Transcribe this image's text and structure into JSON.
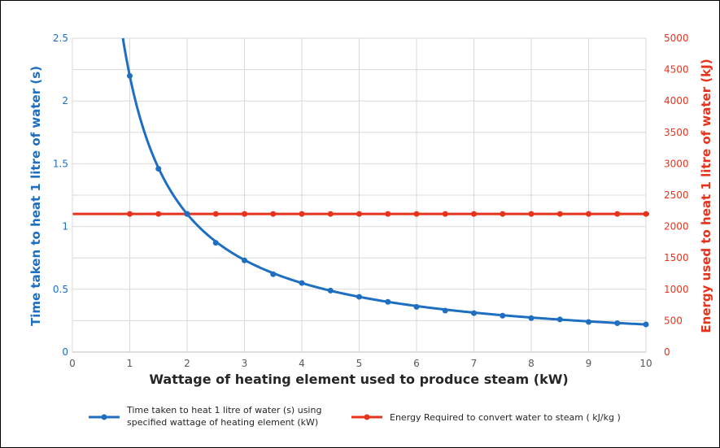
{
  "colors": {
    "series_blue": "#1f6fc1",
    "series_red": "#e8331c",
    "grid": "#d9d9d9",
    "axis_text": "#595959"
  },
  "chart_data": {
    "type": "line",
    "xlabel": "Wattage of heating element used to produce steam (kW)",
    "ylabel_left": "Time taken to heat 1 litre of water (s)",
    "ylabel_right": "Energy used to heat 1 litre of water (kJ)",
    "xlim": [
      0,
      10
    ],
    "ylim_left": [
      0,
      2.5
    ],
    "ylim_right": [
      0,
      5000
    ],
    "x_ticks": [
      "0",
      "1",
      "2",
      "3",
      "4",
      "5",
      "6",
      "7",
      "8",
      "9",
      "10"
    ],
    "yleft_ticks": [
      "0",
      "0.5",
      "1",
      "1.5",
      "2",
      "2.5"
    ],
    "yright_ticks": [
      "0",
      "500",
      "1000",
      "1500",
      "2000",
      "2500",
      "3000",
      "3500",
      "4000",
      "4500",
      "5000"
    ],
    "grid": true,
    "legend_position": "bottom",
    "series": [
      {
        "name_lines": [
          "Time taken to heat 1 litre of water (s) using",
          "specified wattage of heating element (kW)"
        ],
        "axis": "left",
        "color": "#1f6fc1",
        "curve": "reciprocal",
        "x": [
          1,
          1.5,
          2,
          2.5,
          3,
          3.5,
          4,
          4.5,
          5,
          5.5,
          6,
          6.5,
          7,
          7.5,
          8,
          8.5,
          9,
          9.5,
          10
        ],
        "y": [
          2.2,
          1.46,
          1.1,
          0.87,
          0.73,
          0.62,
          0.55,
          0.49,
          0.44,
          0.4,
          0.36,
          0.33,
          0.31,
          0.29,
          0.27,
          0.26,
          0.24,
          0.23,
          0.22
        ]
      },
      {
        "name": "Energy Required to convert water to steam ( kJ/kg )",
        "axis": "right",
        "color": "#e8331c",
        "x": [
          1,
          1.5,
          2,
          2.5,
          3,
          3.5,
          4,
          4.5,
          5,
          5.5,
          6,
          6.5,
          7,
          7.5,
          8,
          8.5,
          9,
          9.5,
          10
        ],
        "y": [
          2200,
          2200,
          2200,
          2200,
          2200,
          2200,
          2200,
          2200,
          2200,
          2200,
          2200,
          2200,
          2200,
          2200,
          2200,
          2200,
          2200,
          2200,
          2200
        ]
      }
    ]
  }
}
